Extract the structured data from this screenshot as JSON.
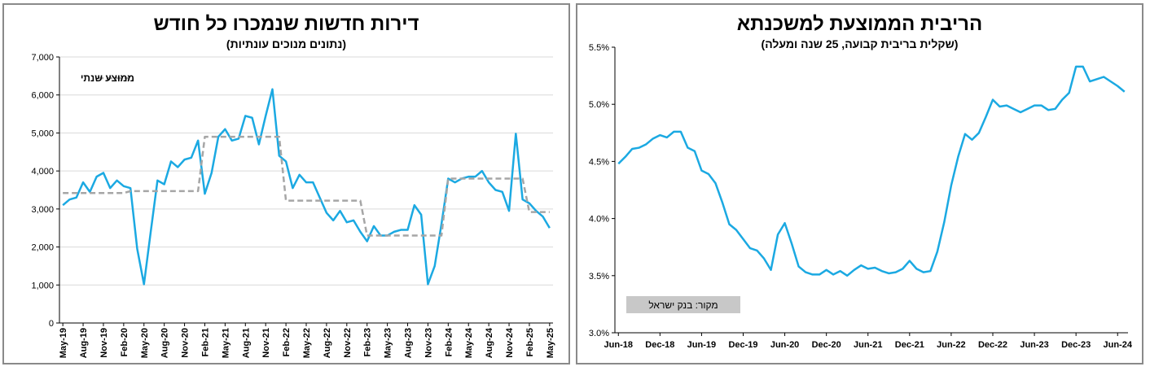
{
  "chart_data": [
    {
      "type": "line",
      "title": "דירות חדשות שנמכרו כל חודש",
      "subtitle": "(נתונים מנוכים עונתיות)",
      "ylim": [
        0,
        7000
      ],
      "y_ticks": [
        "0",
        "1,000",
        "2,000",
        "3,000",
        "4,000",
        "5,000",
        "6,000",
        "7,000"
      ],
      "x_tick_labels": [
        "May-19",
        "Aug-19",
        "Nov-19",
        "Feb-20",
        "May-20",
        "Aug-20",
        "Nov-20",
        "Feb-21",
        "May-21",
        "Aug-21",
        "Nov-21",
        "Feb-22",
        "May-22",
        "Aug-22",
        "Nov-22",
        "Feb-23",
        "May-23",
        "Aug-23",
        "Nov-23",
        "Feb-24",
        "May-24",
        "Aug-24",
        "Nov-24",
        "Feb-25",
        "May-25"
      ],
      "legend": "top-left",
      "grid": true,
      "series": [
        {
          "name": "",
          "color": "#1ba9e2",
          "style": "solid",
          "values": [
            3100,
            3250,
            3300,
            3700,
            3450,
            3850,
            3950,
            3550,
            3750,
            3600,
            3550,
            1950,
            1020,
            2400,
            3750,
            3650,
            4250,
            4100,
            4300,
            4350,
            4800,
            3400,
            3950,
            4900,
            5100,
            4800,
            4850,
            5450,
            5400,
            4700,
            5450,
            6150,
            4400,
            4250,
            3550,
            3900,
            3700,
            3700,
            3300,
            2900,
            2700,
            2950,
            2650,
            2700,
            2400,
            2150,
            2550,
            2300,
            2300,
            2400,
            2450,
            2450,
            3100,
            2850,
            1020,
            1500,
            2600,
            3800,
            3700,
            3800,
            3850,
            3850,
            4000,
            3700,
            3500,
            3450,
            2950,
            4980,
            3250,
            3150,
            2950,
            2800,
            2500
          ]
        },
        {
          "name": "ממוצע שנתי",
          "color": "#a6a6a6",
          "style": "dashed",
          "values": [
            3420,
            3420,
            3420,
            3420,
            3420,
            3420,
            3420,
            3420,
            3420,
            3420,
            3470,
            3470,
            3470,
            3470,
            3470,
            3470,
            3470,
            3470,
            3470,
            3470,
            3470,
            4900,
            4900,
            4900,
            4900,
            4900,
            4900,
            4900,
            4900,
            4900,
            4900,
            4900,
            4900,
            3220,
            3220,
            3220,
            3220,
            3220,
            3220,
            3220,
            3220,
            3220,
            3220,
            3220,
            3220,
            2300,
            2300,
            2300,
            2300,
            2300,
            2300,
            2300,
            2300,
            2300,
            2300,
            2300,
            2300,
            3800,
            3800,
            3800,
            3800,
            3800,
            3800,
            3800,
            3800,
            3800,
            3800,
            3800,
            3800,
            2920,
            2920,
            2920,
            2920
          ]
        }
      ]
    },
    {
      "type": "line",
      "title": "הריבית הממוצעת למשכנתא",
      "subtitle": "(שקלית בריבית קבועה, 25 שנה ומעלה)",
      "ylim": [
        3.0,
        5.5
      ],
      "y_ticks": [
        "3.0%",
        "3.5%",
        "4.0%",
        "4.5%",
        "5.0%",
        "5.5%"
      ],
      "x_tick_labels": [
        "Jun-18",
        "Dec-18",
        "Jun-19",
        "Dec-19",
        "Jun-20",
        "Dec-20",
        "Jun-21",
        "Dec-21",
        "Jun-22",
        "Dec-22",
        "Jun-23",
        "Dec-23",
        "Jun-24"
      ],
      "grid": false,
      "annotation": "מקור: בנק ישראל",
      "series": [
        {
          "name": "",
          "color": "#1ba9e2",
          "style": "solid",
          "values": [
            4.48,
            4.54,
            4.61,
            4.62,
            4.65,
            4.7,
            4.73,
            4.71,
            4.76,
            4.76,
            4.62,
            4.59,
            4.42,
            4.39,
            4.31,
            4.14,
            3.95,
            3.9,
            3.82,
            3.74,
            3.72,
            3.65,
            3.55,
            3.86,
            3.96,
            3.78,
            3.58,
            3.53,
            3.51,
            3.51,
            3.55,
            3.51,
            3.54,
            3.5,
            3.55,
            3.59,
            3.56,
            3.57,
            3.54,
            3.52,
            3.53,
            3.56,
            3.63,
            3.56,
            3.53,
            3.54,
            3.71,
            3.97,
            4.29,
            4.54,
            4.74,
            4.69,
            4.75,
            4.89,
            5.04,
            4.98,
            4.99,
            4.96,
            4.93,
            4.96,
            4.99,
            4.99,
            4.95,
            4.96,
            5.04,
            5.1,
            5.33,
            5.33,
            5.2,
            5.22,
            5.24,
            5.2,
            5.16,
            5.11
          ]
        }
      ]
    }
  ]
}
